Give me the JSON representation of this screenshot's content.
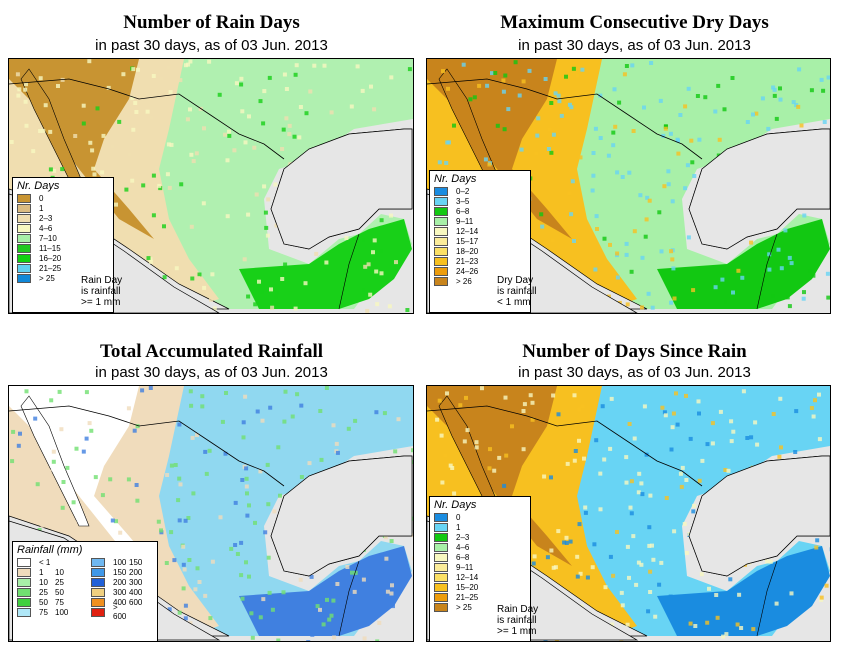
{
  "panels": [
    {
      "title": "Number of Rain Days",
      "subtitle": "in past 30 days, as of  03 Jun. 2013",
      "legend_title": "Nr. Days",
      "legend": [
        {
          "label": "0",
          "color": "#c89432"
        },
        {
          "label": "1",
          "color": "#dcbc82"
        },
        {
          "label": "2–3",
          "color": "#f0deb0"
        },
        {
          "label": "4–6",
          "color": "#f8f8c0"
        },
        {
          "label": "7–10",
          "color": "#a8f0a8"
        },
        {
          "label": "11–15",
          "color": "#20c820"
        },
        {
          "label": "16–20",
          "color": "#10d010"
        },
        {
          "label": "21–25",
          "color": "#60d0f0"
        },
        {
          "label": "> 25",
          "color": "#1088d8"
        }
      ],
      "note": [
        "Rain Day",
        "is rainfall",
        ">= 1 mm"
      ],
      "palette": {
        "north": "#c89432",
        "mid": "#f0deb0",
        "east": "#b0f0b0",
        "south": "#18d018",
        "ocean": "#e6e6e6",
        "speck": "#f8f8c0"
      }
    },
    {
      "title": "Maximum Consecutive Dry Days",
      "subtitle": "in past 30 days, as of  03 Jun. 2013",
      "legend_title": "Nr. Days",
      "legend": [
        {
          "label": "0–2",
          "color": "#1a8ce0"
        },
        {
          "label": "3–5",
          "color": "#68d4f4"
        },
        {
          "label": "6–8",
          "color": "#12c812"
        },
        {
          "label": "9–11",
          "color": "#a8f0a8"
        },
        {
          "label": "12–14",
          "color": "#f8f8c0"
        },
        {
          "label": "15–17",
          "color": "#fbec9a"
        },
        {
          "label": "18–20",
          "color": "#fbe066"
        },
        {
          "label": "21–23",
          "color": "#f7c020"
        },
        {
          "label": "24–26",
          "color": "#ec9c0c"
        },
        {
          "label": "> 26",
          "color": "#c8841c"
        }
      ],
      "note": [
        "Dry Day",
        "is rainfall",
        "< 1 mm"
      ],
      "palette": {
        "north": "#c8841c",
        "mid": "#f7c020",
        "east": "#a8f0a8",
        "south": "#12c812",
        "ocean": "#e6e6e6",
        "speck": "#68d4f4"
      }
    },
    {
      "title": "Total Accumulated Rainfall",
      "subtitle": "in past 30 days, as of  03 Jun. 2013",
      "legend_title": "Rainfall (mm)",
      "legend": [
        {
          "lo": "< 1",
          "hi": "",
          "color": "#ffffff"
        },
        {
          "lo": "1",
          "hi": "10",
          "color": "#f0dcbc"
        },
        {
          "lo": "10",
          "hi": "25",
          "color": "#a8f0a8"
        },
        {
          "lo": "25",
          "hi": "50",
          "color": "#70e070"
        },
        {
          "lo": "50",
          "hi": "75",
          "color": "#40d040"
        },
        {
          "lo": "75",
          "hi": "100",
          "color": "#b0e8f8"
        },
        {
          "lo": "100",
          "hi": "150",
          "color": "#70b8f0"
        },
        {
          "lo": "150",
          "hi": "200",
          "color": "#4098e8"
        },
        {
          "lo": "200",
          "hi": "300",
          "color": "#2060d8"
        },
        {
          "lo": "300",
          "hi": "400",
          "color": "#f0d080"
        },
        {
          "lo": "400",
          "hi": "600",
          "color": "#f09020"
        },
        {
          "lo": "> 600",
          "hi": "",
          "color": "#e02010"
        }
      ],
      "note": [],
      "palette": {
        "north": "#ffffff",
        "mid": "#f0dcbc",
        "east": "#90d8f0",
        "south": "#4080e0",
        "ocean": "#e6e6e6",
        "speck": "#70e070"
      }
    },
    {
      "title": "Number of Days Since Rain",
      "subtitle": "in past 30 days, as of  03 Jun. 2013",
      "legend_title": "Nr. Days",
      "legend": [
        {
          "label": "0",
          "color": "#1a8ce0"
        },
        {
          "label": "1",
          "color": "#68d4f4"
        },
        {
          "label": "2–3",
          "color": "#12c812"
        },
        {
          "label": "4–6",
          "color": "#a8f0a8"
        },
        {
          "label": "6–8",
          "color": "#f8f8c0"
        },
        {
          "label": "9–11",
          "color": "#fbec9a"
        },
        {
          "label": "12–14",
          "color": "#fbe066"
        },
        {
          "label": "15–20",
          "color": "#f7c020"
        },
        {
          "label": "21–25",
          "color": "#ec9c0c"
        },
        {
          "label": "> 25",
          "color": "#c8841c"
        }
      ],
      "note": [
        "Rain Day",
        "is rainfall",
        ">= 1 mm"
      ],
      "palette": {
        "north": "#c8841c",
        "mid": "#f7c020",
        "east": "#68d4f4",
        "south": "#1a8ce0",
        "ocean": "#e6e6e6",
        "speck": "#f8f8c0"
      }
    }
  ]
}
